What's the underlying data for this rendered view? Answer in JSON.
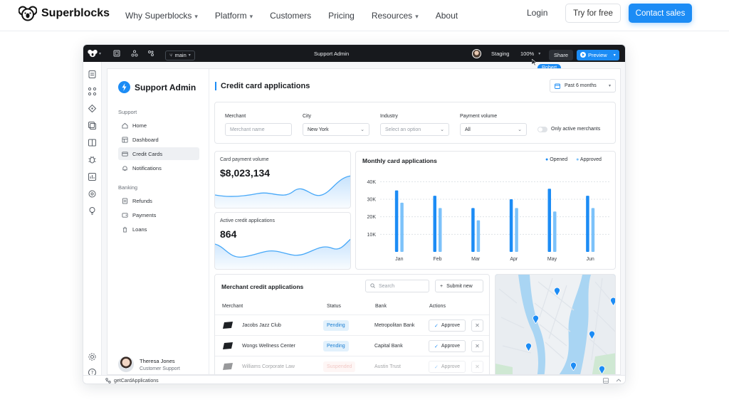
{
  "site": {
    "brand": "Superblocks",
    "nav": [
      {
        "label": "Why Superblocks",
        "dropdown": true
      },
      {
        "label": "Platform",
        "dropdown": true
      },
      {
        "label": "Customers",
        "dropdown": false
      },
      {
        "label": "Pricing",
        "dropdown": false
      },
      {
        "label": "Resources",
        "dropdown": true
      },
      {
        "label": "About",
        "dropdown": false
      }
    ],
    "login": "Login",
    "try_free": "Try for free",
    "contact_sales": "Contact sales"
  },
  "editor": {
    "branch": "main",
    "app_title": "Support Admin",
    "environment": "Staging",
    "zoom": "100%",
    "share": "Share",
    "preview": "Preview",
    "cursor_user": "Robert",
    "bottom_api": "getCardApplications"
  },
  "app": {
    "title": "Support Admin",
    "sections": [
      {
        "title": "Support",
        "items": [
          "Home",
          "Dashboard",
          "Credit Cards",
          "Notifications"
        ]
      },
      {
        "title": "Banking",
        "items": [
          "Refunds",
          "Payments",
          "Loans"
        ]
      }
    ],
    "active_item": "Credit Cards",
    "user": {
      "name": "Theresa Jones",
      "role": "Customer Support"
    },
    "page_title": "Credit card applications",
    "date_filter": "Past 6 months",
    "filters": {
      "merchant_label": "Merchant",
      "merchant_placeholder": "Merchant name",
      "city_label": "City",
      "city_value": "New York",
      "industry_label": "Industry",
      "industry_placeholder": "Select an option",
      "volume_label": "Payment volume",
      "volume_value": "All",
      "toggle_label": "Only active merchants",
      "toggle_on": false
    },
    "stats": [
      {
        "label": "Card payment volume",
        "value": "$8,023,134"
      },
      {
        "label": "Active credit applications",
        "value": "864"
      }
    ],
    "table": {
      "title": "Merchant credit applications",
      "search_placeholder": "Search",
      "submit_label": "Submit new",
      "columns": [
        "Merchant",
        "Status",
        "Bank",
        "Actions"
      ],
      "rows": [
        {
          "merchant": "Jacobs Jazz Club",
          "status": "Pending",
          "bank": "Metropolitan Bank",
          "action": "Approve"
        },
        {
          "merchant": "Wongs Wellness Center",
          "status": "Pending",
          "bank": "Capital Bank",
          "action": "Approve"
        },
        {
          "merchant": "Williams Corporate Law",
          "status": "Suspended",
          "bank": "Austin Trust",
          "action": "Approve"
        }
      ]
    }
  },
  "chart_data": {
    "type": "bar",
    "title": "Monthly card applications",
    "categories": [
      "Jan",
      "Feb",
      "Mar",
      "Apr",
      "May",
      "Jun"
    ],
    "series": [
      {
        "name": "Opened",
        "color": "#1c8cf5",
        "values": [
          35,
          32,
          25,
          30,
          36,
          32
        ]
      },
      {
        "name": "Approved",
        "color": "#7cc2fa",
        "values": [
          28,
          25,
          18,
          25,
          23,
          25
        ]
      }
    ],
    "ylim": [
      0,
      45
    ],
    "ytick_values": [
      10,
      20,
      30,
      40
    ],
    "yticks": [
      "10K",
      "20K",
      "30K",
      "40K"
    ],
    "grid": true,
    "legend": "top-right"
  }
}
